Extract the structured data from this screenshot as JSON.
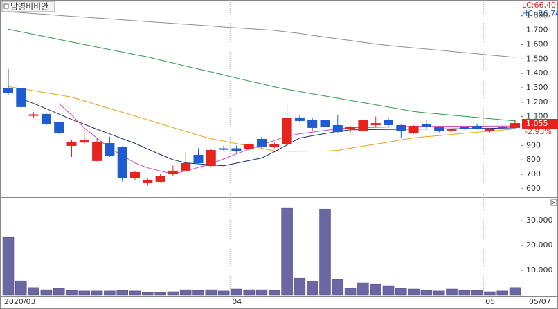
{
  "chart_data": [
    {
      "type": "candlestick",
      "title": "남영비비안",
      "categories": [
        "2020/03",
        null,
        null,
        null,
        null,
        null,
        null,
        null,
        null,
        null,
        null,
        null,
        null,
        null,
        null,
        null,
        null,
        null,
        "04",
        null,
        null,
        null,
        null,
        null,
        null,
        null,
        null,
        null,
        null,
        null,
        null,
        null,
        null,
        null,
        null,
        null,
        null,
        null,
        "05",
        null,
        null
      ],
      "open": [
        1300,
        1295,
        1105,
        1118,
        1060,
        897,
        920,
        792,
        916,
        892,
        672,
        638,
        648,
        700,
        725,
        835,
        758,
        880,
        880,
        873,
        945,
        888,
        907,
        1094,
        1075,
        1075,
        1041,
        1012,
        998,
        1041,
        1075,
        1041,
        984,
        1050,
        1027,
        1003,
        1027,
        1036,
        998,
        1031,
        1022
      ],
      "high": [
        1430,
        1300,
        1130,
        1125,
        1065,
        940,
        1010,
        950,
        960,
        895,
        720,
        670,
        700,
        760,
        850,
        880,
        875,
        900,
        900,
        920,
        960,
        920,
        1180,
        1110,
        1090,
        1210,
        1110,
        1035,
        1080,
        1100,
        1090,
        1045,
        1040,
        1075,
        1030,
        1015,
        1030,
        1050,
        1020,
        1035,
        1080
      ],
      "low": [
        1250,
        1160,
        1090,
        1040,
        980,
        820,
        910,
        790,
        820,
        650,
        660,
        620,
        640,
        690,
        720,
        770,
        750,
        860,
        850,
        865,
        880,
        880,
        900,
        1060,
        1000,
        1020,
        985,
        990,
        990,
        1030,
        1030,
        950,
        980,
        1010,
        990,
        995,
        1010,
        1010,
        990,
        1015,
        1015
      ],
      "close": [
        1262,
        1166,
        1115,
        1046,
        988,
        926,
        935,
        926,
        825,
        672,
        715,
        662,
        686,
        725,
        777,
        777,
        868,
        870,
        863,
        907,
        888,
        907,
        1089,
        1070,
        1022,
        1027,
        993,
        1027,
        1075,
        1055,
        1041,
        998,
        1036,
        1031,
        998,
        1012,
        1017,
        1017,
        1017,
        1022,
        1055
      ],
      "up_color": "#e4251e",
      "down_color": "#1e5ccf",
      "series": [
        {
          "color": "#8c8c8c",
          "values": [
            1827,
            1821,
            1815,
            1809,
            1802,
            1796,
            1790,
            1784,
            1778,
            1772,
            1765,
            1759,
            1753,
            1747,
            1741,
            1735,
            1729,
            1722,
            1716,
            1710,
            1704,
            1698,
            1687,
            1677,
            1664,
            1652,
            1640,
            1628,
            1616,
            1604,
            1594,
            1585,
            1577,
            1569,
            1561,
            1552,
            1544,
            1536,
            1527,
            1519,
            1511
          ]
        },
        {
          "color": "#2e9a4a",
          "values": [
            1706,
            1688,
            1671,
            1653,
            1635,
            1618,
            1600,
            1583,
            1565,
            1548,
            1530,
            1514,
            1492,
            1472,
            1450,
            1430,
            1410,
            1389,
            1368,
            1347,
            1327,
            1306,
            1289,
            1274,
            1258,
            1243,
            1228,
            1212,
            1197,
            1182,
            1166,
            1151,
            1135,
            1126,
            1118,
            1110,
            1102,
            1094,
            1086,
            1078,
            1070
          ]
        },
        {
          "color": "#eaa21c",
          "values": [
            1308,
            1294,
            1280,
            1266,
            1251,
            1235,
            1209,
            1182,
            1156,
            1130,
            1104,
            1078,
            1050,
            1024,
            997,
            971,
            947,
            930,
            913,
            896,
            880,
            863,
            860,
            860,
            861,
            861,
            866,
            881,
            895,
            909,
            923,
            938,
            952,
            961,
            968,
            976,
            984,
            991,
            999,
            1007,
            1015
          ]
        },
        {
          "color": "#1b2a6b",
          "values": [
            null,
            1225,
            1191,
            1155,
            1117,
            1080,
            1047,
            1012,
            980,
            947,
            914,
            875,
            837,
            801,
            779,
            772,
            765,
            759,
            777,
            795,
            813,
            856,
            904,
            951,
            967,
            982,
            997,
            1008,
            1009,
            1010,
            1011,
            1012,
            1013,
            1014,
            1015,
            1016,
            1017,
            1018,
            1019,
            1020,
            1022
          ]
        },
        {
          "color": "#d23fbf",
          "values": [
            null,
            null,
            null,
            null,
            1190,
            1111,
            1021,
            950,
            882,
            830,
            778,
            745,
            723,
            702,
            723,
            748,
            774,
            806,
            841,
            874,
            904,
            934,
            963,
            981,
            992,
            1004,
            1015,
            1023,
            1024,
            1026,
            1028,
            1030,
            1032,
            1032,
            1033,
            1033,
            1033,
            1034,
            1034,
            1035,
            1035
          ]
        }
      ],
      "ylim": [
        542,
        1909
      ],
      "yticks": [
        600,
        700,
        800,
        900,
        {
          "value": 1100,
          "label": "1,100"
        },
        {
          "value": 1200,
          "label": "1,200"
        },
        {
          "value": 1300,
          "label": "1,300"
        },
        {
          "value": 1400,
          "label": "1,400"
        },
        {
          "value": 1500,
          "label": "1,500"
        },
        {
          "value": 1600,
          "label": "1,600"
        },
        {
          "value": 1700,
          "label": "1,700"
        },
        {
          "value": 1800,
          "label": "1,800"
        }
      ],
      "last_price": {
        "value": 1055,
        "label": "1,055"
      },
      "change_label": "-2.93%",
      "annotations": [
        "LC:66,40",
        "HC:-26,74"
      ],
      "last_date": "05/07"
    },
    {
      "type": "bar",
      "color": "#6b67a3",
      "values": [
        23300,
        5800,
        3100,
        2200,
        2800,
        1900,
        1700,
        1700,
        1700,
        1900,
        1700,
        1100,
        1100,
        1400,
        2200,
        1900,
        2200,
        1700,
        2500,
        2200,
        2200,
        1900,
        35000,
        6900,
        5600,
        34700,
        6400,
        2800,
        5000,
        4400,
        3600,
        2800,
        2500,
        1900,
        1700,
        2500,
        1900,
        1900,
        1400,
        1700,
        3100
      ],
      "ylim": [
        0,
        39200
      ],
      "yticks": [
        {
          "value": 10000,
          "label": "10,000"
        },
        {
          "value": 20000,
          "label": "20,000"
        },
        {
          "value": 30000,
          "label": "30,000"
        }
      ]
    }
  ]
}
